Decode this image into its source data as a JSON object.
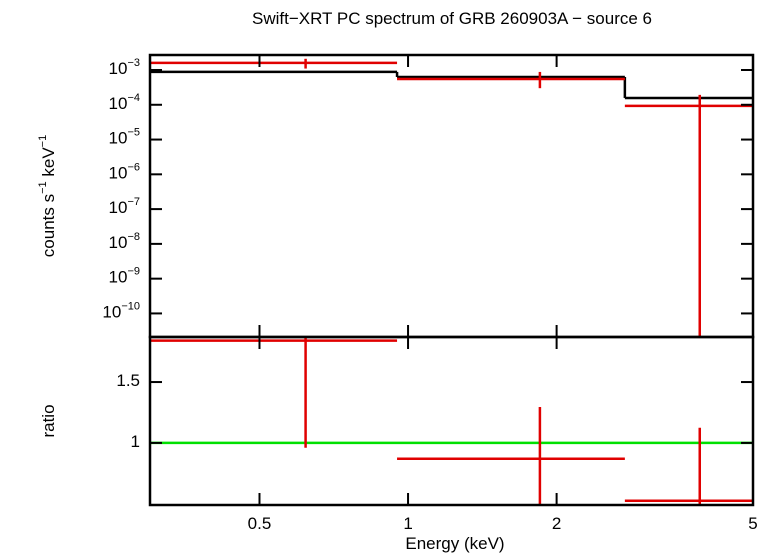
{
  "chart_data": [
    {
      "type": "errorbar",
      "title": "Swift−XRT PC spectrum of GRB 260903A − source 6",
      "ylabel": "counts s−1 keV−1",
      "log_y": true,
      "log_x": true,
      "xlim": [
        0.3,
        5
      ],
      "ylim": [
        2.1e-11,
        0.0027
      ],
      "yticks": [
        {
          "value": 0.001,
          "label": "10−3"
        },
        {
          "value": 0.0001,
          "label": "10−4"
        },
        {
          "value": 1e-05,
          "label": "10−5"
        },
        {
          "value": 1e-06,
          "label": "10−6"
        },
        {
          "value": 1e-07,
          "label": "10−7"
        },
        {
          "value": 1e-08,
          "label": "10−8"
        },
        {
          "value": 1e-09,
          "label": "10−9"
        },
        {
          "value": 1e-10,
          "label": "10−10"
        }
      ],
      "series": [
        {
          "color": "#e00000",
          "x": [
            0.62,
            1.85,
            3.9
          ],
          "x_low": [
            0.3,
            0.95,
            2.75
          ],
          "x_high": [
            0.95,
            2.75,
            5
          ],
          "values": [
            0.0016,
            0.00055,
            9.3e-05
          ],
          "yerr_low": [
            0.0005,
            0.00025,
            9.3e-05
          ],
          "yerr_high": [
            0.0005,
            0.00033,
            0.0001
          ]
        }
      ],
      "model": {
        "color": "#000000",
        "bins": [
          0.3,
          0.95,
          2.75,
          5
        ],
        "values": [
          0.00088,
          0.00063,
          0.000157
        ]
      }
    },
    {
      "type": "errorbar",
      "ylabel": "ratio",
      "xlabel": "Energy (keV)",
      "log_x": true,
      "log_y": false,
      "xlim": [
        0.3,
        5
      ],
      "ylim": [
        0.49,
        1.87
      ],
      "xticks": [
        0.5,
        1,
        2,
        5
      ],
      "yticks": [
        1,
        1.5
      ],
      "series": [
        {
          "color": "#e00000",
          "x": [
            0.62,
            1.85,
            3.9
          ],
          "x_low": [
            0.3,
            0.95,
            2.75
          ],
          "x_high": [
            0.95,
            2.75,
            5
          ],
          "values": [
            1.84,
            0.87,
            0.525
          ],
          "yerr_low": [
            0.88,
            0.43,
            0.1
          ],
          "yerr_high": [
            0.9,
            0.425,
            0.6
          ]
        }
      ],
      "reference": {
        "value": 1,
        "color": "#00e000"
      }
    }
  ]
}
